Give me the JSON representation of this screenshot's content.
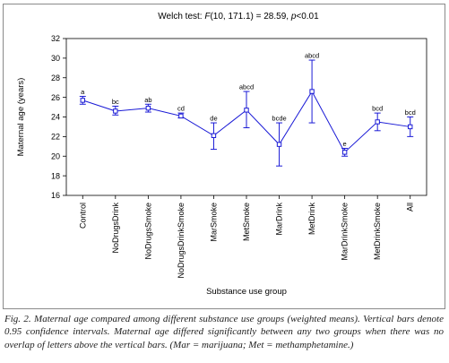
{
  "chart_data": {
    "type": "line",
    "title": {
      "prefix": "Welch test: ",
      "stat": "F",
      "df": "(10, 171.1) = 28.59, ",
      "p": "p",
      "suffix": "<0.01"
    },
    "xlabel": "Substance use group",
    "ylabel": "Maternal age (years)",
    "ylim": [
      16,
      32
    ],
    "yticks": [
      16,
      18,
      20,
      22,
      24,
      26,
      28,
      30,
      32
    ],
    "categories": [
      "Control",
      "NoDrugsDrink",
      "NoDrugsSmoke",
      "NoDrugsDrinkSmoke",
      "MarSmoke",
      "MetSmoke",
      "MarDrink",
      "MetDrink",
      "MarDrinkSmoke",
      "MetDrinkSmoke",
      "All"
    ],
    "values": [
      25.7,
      24.6,
      24.9,
      24.1,
      22.1,
      24.7,
      21.2,
      26.6,
      20.4,
      23.5,
      23.0
    ],
    "ci_lower": [
      25.3,
      24.2,
      24.5,
      23.9,
      20.7,
      22.9,
      19.0,
      23.4,
      20.0,
      22.6,
      22.0
    ],
    "ci_upper": [
      26.1,
      25.1,
      25.3,
      24.4,
      23.4,
      26.6,
      23.4,
      29.8,
      20.8,
      24.4,
      24.0
    ],
    "group_letters": [
      "a",
      "bc",
      "ab",
      "cd",
      "de",
      "abcd",
      "bcde",
      "abcd",
      "e",
      "bcd",
      "bcd"
    ],
    "line_color": "#1a1ad6",
    "grid": false
  },
  "caption": {
    "text": "Fig. 2. Maternal age compared among different substance use groups (weighted means). Vertical bars denote 0.95 confidence intervals. Maternal age differed significantly between any two groups when there was no overlap of letters above the vertical bars. (Mar = marijuana; Met = methamphetamine.)"
  }
}
